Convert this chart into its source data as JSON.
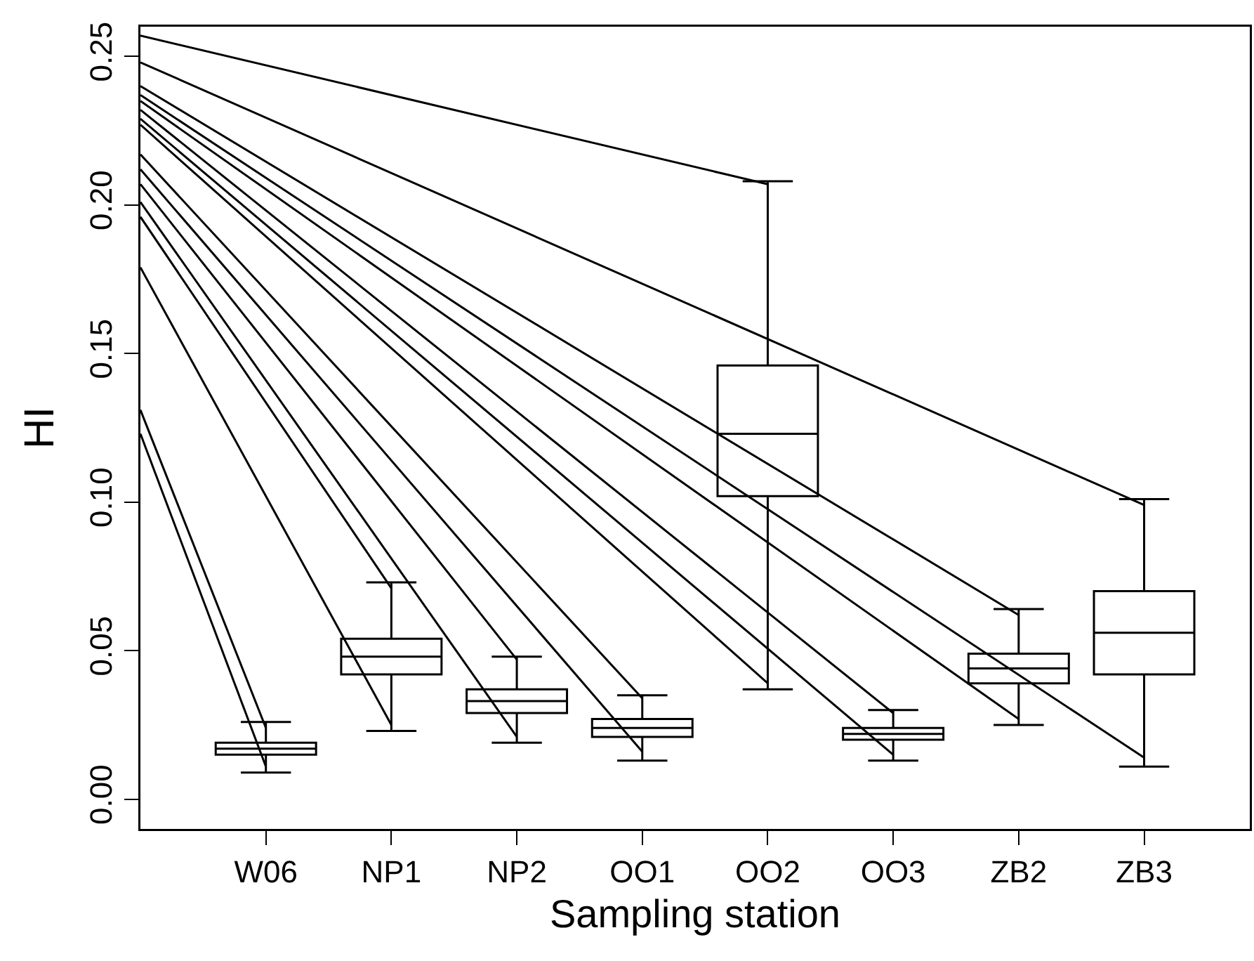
{
  "chart_data": {
    "type": "box",
    "xlabel": "Sampling station",
    "ylabel": "HI",
    "categories": [
      null,
      "W06",
      "NP1",
      "NP2",
      "OO1",
      "OO2",
      "OO3",
      "ZB2",
      "ZB3"
    ],
    "ylim": [
      -0.01,
      0.26
    ],
    "yticks": [
      {
        "value": 0,
        "label": "0.00"
      },
      {
        "value": 0.05,
        "label": "0.05"
      },
      {
        "value": 0.1,
        "label": "0.10"
      },
      {
        "value": 0.15,
        "label": "0.15"
      },
      {
        "value": 0.2,
        "label": "0.20"
      },
      {
        "value": 0.25,
        "label": "0.25"
      }
    ],
    "series": [
      {
        "color": "#000000",
        "boxes": [
          null,
          {
            "low": 0.009,
            "q1": 0.015,
            "median": 0.017,
            "q3": 0.019,
            "high": 0.026
          },
          {
            "low": 0.023,
            "q1": 0.042,
            "median": 0.048,
            "q3": 0.054,
            "high": 0.073
          },
          {
            "low": 0.019,
            "q1": 0.029,
            "median": 0.033,
            "q3": 0.037,
            "high": 0.048
          },
          {
            "low": 0.013,
            "q1": 0.021,
            "median": 0.024,
            "q3": 0.027,
            "high": 0.035
          },
          {
            "low": 0.037,
            "q1": 0.102,
            "median": 0.123,
            "q3": 0.146,
            "high": 0.208
          },
          {
            "low": 0.013,
            "q1": 0.02,
            "median": 0.022,
            "q3": 0.024,
            "high": 0.03
          },
          {
            "low": 0.025,
            "q1": 0.039,
            "median": 0.044,
            "q3": 0.049,
            "high": 0.064
          },
          {
            "low": 0.011,
            "q1": 0.042,
            "median": 0.056,
            "q3": 0.07,
            "high": 0.101
          }
        ]
      },
      {
        "type": "line",
        "color": "#000000",
        "values": [
          0.257,
          null,
          null,
          null,
          null,
          0.207,
          null,
          null,
          null
        ]
      },
      {
        "type": "line",
        "color": "#000000",
        "values": [
          0.248,
          null,
          null,
          null,
          null,
          null,
          null,
          null,
          0.099
        ]
      },
      {
        "type": "line",
        "color": "#000000",
        "values": [
          0.24,
          null,
          null,
          null,
          null,
          null,
          null,
          0.062,
          null
        ]
      },
      {
        "type": "line",
        "color": "#000000",
        "values": [
          0.237,
          null,
          null,
          null,
          null,
          null,
          null,
          null,
          0.014
        ]
      },
      {
        "type": "line",
        "color": "#000000",
        "values": [
          0.235,
          null,
          null,
          null,
          null,
          null,
          null,
          0.027,
          null
        ]
      },
      {
        "type": "line",
        "color": "#000000",
        "values": [
          0.232,
          null,
          null,
          null,
          null,
          null,
          0.029,
          null,
          null
        ]
      },
      {
        "type": "line",
        "color": "#000000",
        "values": [
          0.229,
          null,
          null,
          null,
          null,
          null,
          0.015,
          null,
          null
        ]
      },
      {
        "type": "line",
        "color": "#000000",
        "values": [
          0.227,
          null,
          null,
          null,
          null,
          0.039,
          null,
          null,
          null
        ]
      },
      {
        "type": "line",
        "color": "#000000",
        "values": [
          0.217,
          null,
          null,
          null,
          0.034,
          null,
          null,
          null,
          null
        ]
      },
      {
        "type": "line",
        "color": "#000000",
        "values": [
          0.212,
          null,
          null,
          null,
          0.016,
          null,
          null,
          null,
          null
        ]
      },
      {
        "type": "line",
        "color": "#000000",
        "values": [
          0.207,
          null,
          null,
          0.047,
          null,
          null,
          null,
          null,
          null
        ]
      },
      {
        "type": "line",
        "color": "#000000",
        "values": [
          0.201,
          null,
          null,
          0.021,
          null,
          null,
          null,
          null,
          null
        ]
      },
      {
        "type": "line",
        "color": "#000000",
        "values": [
          0.196,
          null,
          0.071,
          null,
          null,
          null,
          null,
          null,
          null
        ]
      },
      {
        "type": "line",
        "color": "#000000",
        "values": [
          0.179,
          null,
          0.025,
          null,
          null,
          null,
          null,
          null,
          null
        ]
      },
      {
        "type": "line",
        "color": "#000000",
        "values": [
          0.131,
          0.024,
          null,
          null,
          null,
          null,
          null,
          null,
          null
        ]
      },
      {
        "type": "line",
        "color": "#000000",
        "values": [
          0.123,
          0.011,
          null,
          null,
          null,
          null,
          null,
          null,
          null
        ]
      }
    ]
  }
}
